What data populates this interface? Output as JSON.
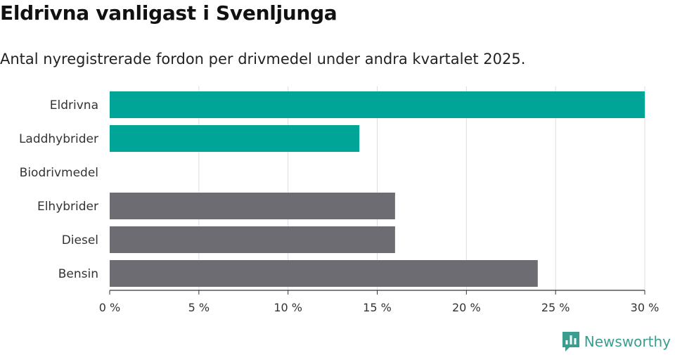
{
  "header": {
    "title": "Eldrivna vanligast i Svenljunga",
    "subtitle": "Antal nyregistrerade fordon per drivmedel under andra kvartalet 2025."
  },
  "brand": {
    "name": "Newsworthy",
    "icon": "newsworthy-logo-icon",
    "color": "#3b9d8f"
  },
  "chart_data": {
    "type": "bar",
    "orientation": "horizontal",
    "categories": [
      "Eldrivna",
      "Laddhybrider",
      "Biodrivmedel",
      "Elhybrider",
      "Diesel",
      "Bensin"
    ],
    "values": [
      30,
      14,
      0,
      16,
      16,
      24
    ],
    "colors": [
      "#00a597",
      "#00a597",
      "#00a597",
      "#6d6c73",
      "#6d6c73",
      "#6d6c73"
    ],
    "xlim": [
      0,
      30
    ],
    "xticks": [
      0,
      5,
      10,
      15,
      20,
      25,
      30
    ],
    "xtick_labels": [
      "0 %",
      "5 %",
      "10 %",
      "15 %",
      "20 %",
      "25 %",
      "30 %"
    ],
    "grid": true
  }
}
